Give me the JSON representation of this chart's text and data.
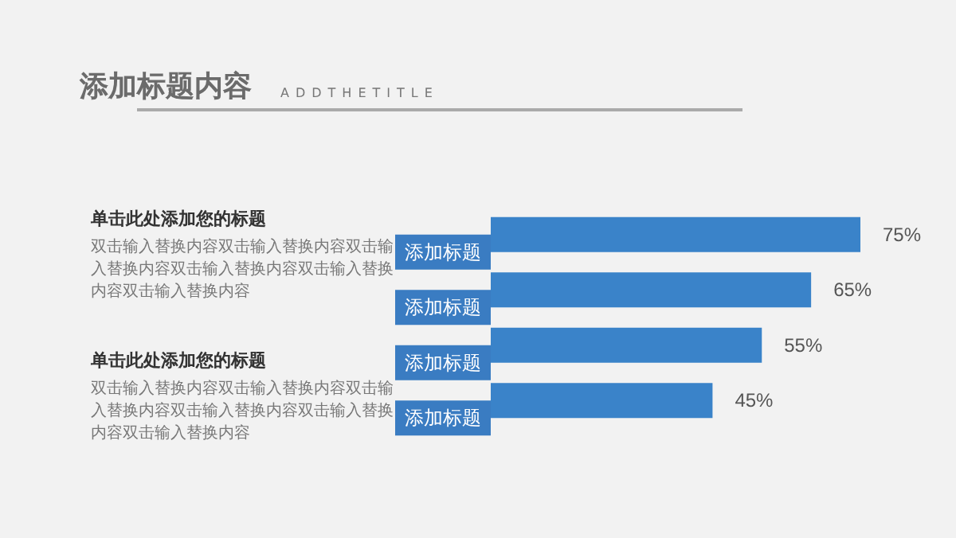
{
  "chart_data": {
    "type": "bar",
    "orientation": "horizontal",
    "title": "添加标题内容",
    "subtitle": "ADDTHETITLE",
    "categories": [
      "添加标题",
      "添加标题",
      "添加标题",
      "添加标题"
    ],
    "values": [
      75,
      65,
      55,
      45
    ],
    "value_labels": [
      "75%",
      "65%",
      "55%",
      "45%"
    ],
    "color": "#3a83c9",
    "grid": false,
    "annotations": [
      "单击此处添加您的标题",
      "双击输入替换内容双击输入替换内容双击输入替换内容双击输入替换内容双击输入替换内容双击输入替换内容",
      "单击此处添加您的标题",
      "双击输入替换内容双击输入替换内容双击输入替换内容双击输入替换内容双击输入替换内容双击输入替换内容"
    ]
  }
}
